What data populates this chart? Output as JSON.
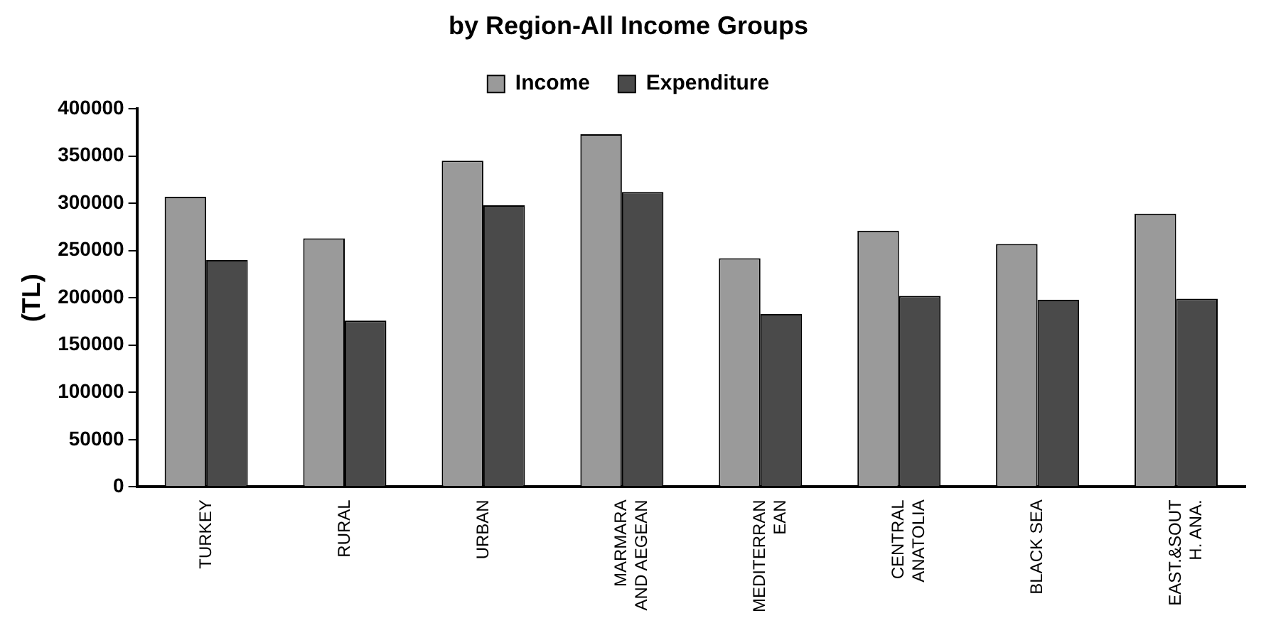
{
  "chart_data": {
    "type": "bar",
    "title": "by Region-All Income Groups",
    "ylabel": "(TL)",
    "categories": [
      "TURKEY",
      "RURAL",
      "URBAN",
      "MARMARA AND AEGEAN",
      "MEDITERRAN EAN",
      "CENTRAL ANATOLIA",
      "BLACK SEA",
      "EAST.&SOUT H. ANA."
    ],
    "series": [
      {
        "name": "Income",
        "color": "#9a9a9a",
        "values": [
          307000,
          263000,
          345000,
          373000,
          242000,
          271000,
          257000,
          289000
        ]
      },
      {
        "name": "Expenditure",
        "color": "#4a4a4a",
        "values": [
          240000,
          176000,
          298000,
          312000,
          183000,
          202000,
          198000,
          199000
        ]
      }
    ],
    "ylim": [
      0,
      400000
    ],
    "yticks": [
      0,
      50000,
      100000,
      150000,
      200000,
      250000,
      300000,
      350000,
      400000
    ],
    "grid": false,
    "legend": "top"
  }
}
